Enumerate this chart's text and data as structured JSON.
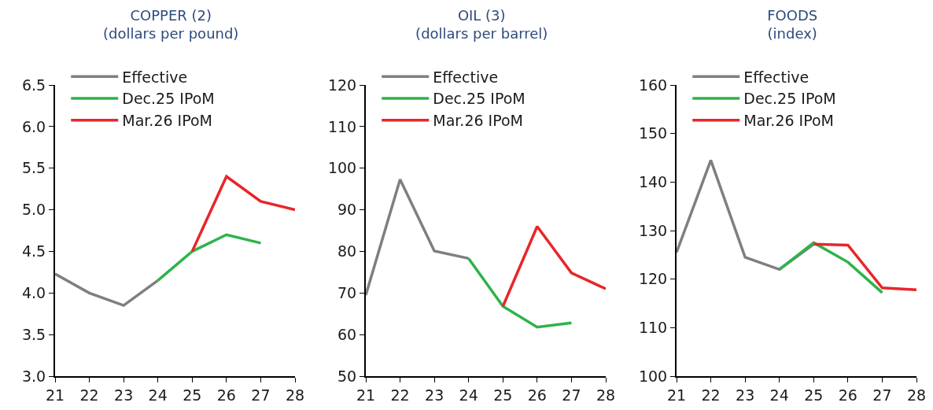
{
  "chart_data": [
    {
      "type": "line",
      "title": "COPPER (2)",
      "subtitle": "(dollars per pound)",
      "xlim": [
        21,
        28
      ],
      "xticks": [
        21,
        22,
        23,
        24,
        25,
        26,
        27,
        28
      ],
      "ylim": [
        3.0,
        6.5
      ],
      "yticks": [
        {
          "value": 3.0,
          "label": "3.0"
        },
        3.5,
        {
          "value": 4.0,
          "label": "4.0"
        },
        4.5,
        {
          "value": 5.0,
          "label": "5.0"
        },
        5.5,
        {
          "value": 6.0,
          "label": "6.0"
        },
        6.5
      ],
      "grid": false,
      "legend": "top left",
      "marker": "none",
      "line_style": "solid",
      "series": [
        {
          "name": "Effective",
          "color": "#7f7f7f",
          "x": [
            21,
            22,
            23,
            24
          ],
          "values": [
            4.23,
            4.0,
            3.85,
            4.15
          ]
        },
        {
          "name": "Dec.25 IPoM",
          "color": "#2db34a",
          "x": [
            24,
            25,
            26,
            27
          ],
          "values": [
            4.15,
            4.5,
            4.7,
            4.6
          ]
        },
        {
          "name": "Mar.26 IPoM",
          "color": "#e8262a",
          "x": [
            25,
            26,
            27,
            28
          ],
          "values": [
            4.5,
            5.4,
            5.1,
            5.0
          ]
        }
      ]
    },
    {
      "type": "line",
      "title": "OIL (3)",
      "subtitle": "(dollars per barrel)",
      "xlim": [
        21,
        28
      ],
      "xticks": [
        21,
        22,
        23,
        24,
        25,
        26,
        27,
        28
      ],
      "ylim": [
        50,
        120
      ],
      "yticks": [
        50,
        60,
        70,
        80,
        90,
        100,
        110,
        120
      ],
      "grid": false,
      "legend": "top left",
      "marker": "none",
      "line_style": "solid",
      "series": [
        {
          "name": "Effective",
          "color": "#7f7f7f",
          "x": [
            21,
            22,
            23,
            24
          ],
          "values": [
            69.5,
            97.3,
            80.1,
            78.3
          ]
        },
        {
          "name": "Dec.25 IPoM",
          "color": "#2db34a",
          "x": [
            24,
            25,
            26,
            27
          ],
          "values": [
            78.3,
            66.8,
            61.8,
            62.8
          ]
        },
        {
          "name": "Mar.26 IPoM",
          "color": "#e8262a",
          "x": [
            25,
            26,
            27,
            28
          ],
          "values": [
            66.8,
            86.0,
            74.8,
            71.0
          ]
        }
      ]
    },
    {
      "type": "line",
      "title": "FOODS",
      "subtitle": "(index)",
      "xlim": [
        21,
        28
      ],
      "xticks": [
        21,
        22,
        23,
        24,
        25,
        26,
        27,
        28
      ],
      "ylim": [
        100,
        160
      ],
      "yticks": [
        100,
        110,
        120,
        130,
        140,
        150,
        160
      ],
      "grid": false,
      "legend": "top left",
      "marker": "none",
      "line_style": "solid",
      "series": [
        {
          "name": "Effective",
          "color": "#7f7f7f",
          "x": [
            21,
            22,
            23,
            24,
            25
          ],
          "values": [
            125.5,
            144.5,
            124.5,
            122.0,
            127.2
          ]
        },
        {
          "name": "Dec.25 IPoM",
          "color": "#2db34a",
          "x": [
            24,
            25,
            26,
            27
          ],
          "values": [
            122.0,
            127.5,
            123.5,
            117.2
          ]
        },
        {
          "name": "Mar.26 IPoM",
          "color": "#e8262a",
          "x": [
            25,
            26,
            27,
            28
          ],
          "values": [
            127.2,
            127.0,
            118.2,
            117.8
          ]
        }
      ]
    }
  ]
}
